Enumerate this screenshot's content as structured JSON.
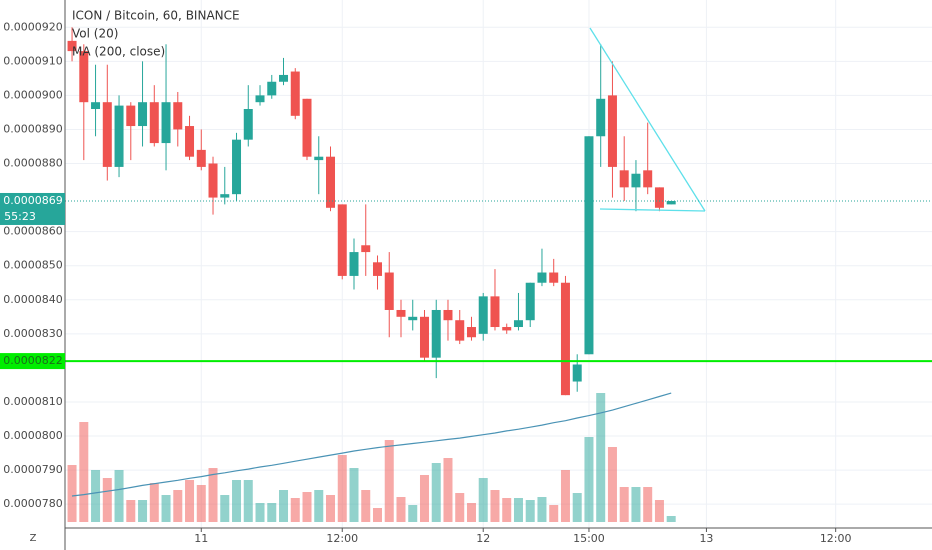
{
  "chart_data": {
    "type": "candlestick",
    "title": "ICON / Bitcoin, 60, BINANCE",
    "up_color": "#26a69a",
    "down_color": "#ef5350",
    "open": [
      9.16e-05,
      9.13e-05,
      8.96e-05,
      8.98e-05,
      8.79e-05,
      8.97e-05,
      8.91e-05,
      8.98e-05,
      8.86e-05,
      8.98e-05,
      8.91e-05,
      8.84e-05,
      8.8e-05,
      8.7e-05,
      8.71e-05,
      8.87e-05,
      8.98e-05,
      9e-05,
      9.04e-05,
      9.07e-05,
      8.99e-05,
      8.81e-05,
      8.82e-05,
      8.68e-05,
      8.47e-05,
      8.56e-05,
      8.51e-05,
      8.48e-05,
      8.37e-05,
      8.34e-05,
      8.35e-05,
      8.23e-05,
      8.37e-05,
      8.34e-05,
      8.32e-05,
      8.3e-05,
      8.41e-05,
      8.32e-05,
      8.32e-05,
      8.34e-05,
      8.45e-05,
      8.48e-05,
      8.45e-05,
      8.16e-05,
      8.24e-05,
      8.88e-05,
      9e-05,
      8.78e-05,
      8.73e-05,
      8.78e-05,
      8.73e-05,
      8.68e-05
    ],
    "high": [
      9.2e-05,
      9.15e-05,
      9.09e-05,
      9.09e-05,
      9e-05,
      8.98e-05,
      9.1e-05,
      9.03e-05,
      9.15e-05,
      9.01e-05,
      8.94e-05,
      8.9e-05,
      8.82e-05,
      8.79e-05,
      8.89e-05,
      9.03e-05,
      9.03e-05,
      9.06e-05,
      9.11e-05,
      9.08e-05,
      8.99e-05,
      8.88e-05,
      8.85e-05,
      8.68e-05,
      8.58e-05,
      8.68e-05,
      8.53e-05,
      8.54e-05,
      8.4e-05,
      8.4e-05,
      8.37e-05,
      8.4e-05,
      8.4e-05,
      8.37e-05,
      8.35e-05,
      8.42e-05,
      8.49e-05,
      8.33e-05,
      8.42e-05,
      8.45e-05,
      8.55e-05,
      8.52e-05,
      8.47e-05,
      8.24e-05,
      8.88e-05,
      9.15e-05,
      9.1e-05,
      8.88e-05,
      8.81e-05,
      8.92e-05,
      8.73e-05,
      8.69e-05
    ],
    "low": [
      9.1e-05,
      8.81e-05,
      8.88e-05,
      8.75e-05,
      8.76e-05,
      8.81e-05,
      8.85e-05,
      8.85e-05,
      8.78e-05,
      8.85e-05,
      8.81e-05,
      8.78e-05,
      8.65e-05,
      8.68e-05,
      8.69e-05,
      8.85e-05,
      8.97e-05,
      8.99e-05,
      9.03e-05,
      8.93e-05,
      8.81e-05,
      8.71e-05,
      8.66e-05,
      8.46e-05,
      8.43e-05,
      8.47e-05,
      8.43e-05,
      8.29e-05,
      8.29e-05,
      8.31e-05,
      8.22e-05,
      8.17e-05,
      8.28e-05,
      8.27e-05,
      8.28e-05,
      8.28e-05,
      8.31e-05,
      8.3e-05,
      8.31e-05,
      8.32e-05,
      8.44e-05,
      8.44e-05,
      8.12e-05,
      8.13e-05,
      8.24e-05,
      8.79e-05,
      8.7e-05,
      8.69e-05,
      8.66e-05,
      8.71e-05,
      8.66e-05,
      8.68e-05
    ],
    "close": [
      9.13e-05,
      8.98e-05,
      8.98e-05,
      8.79e-05,
      8.97e-05,
      8.91e-05,
      8.98e-05,
      8.86e-05,
      8.98e-05,
      8.9e-05,
      8.82e-05,
      8.79e-05,
      8.7e-05,
      8.71e-05,
      8.87e-05,
      8.96e-05,
      9e-05,
      9.04e-05,
      9.06e-05,
      8.94e-05,
      8.82e-05,
      8.82e-05,
      8.67e-05,
      8.47e-05,
      8.54e-05,
      8.54e-05,
      8.47e-05,
      8.37e-05,
      8.35e-05,
      8.35e-05,
      8.23e-05,
      8.37e-05,
      8.34e-05,
      8.28e-05,
      8.29e-05,
      8.41e-05,
      8.32e-05,
      8.31e-05,
      8.34e-05,
      8.45e-05,
      8.48e-05,
      8.45e-05,
      8.12e-05,
      8.21e-05,
      8.88e-05,
      8.99e-05,
      8.79e-05,
      8.73e-05,
      8.77e-05,
      8.73e-05,
      8.67e-05,
      8.69e-05
    ],
    "volume": {
      "name": "Vol (20)",
      "values": [
        57,
        100,
        52,
        44,
        52,
        22,
        22,
        39,
        27,
        32,
        42,
        37,
        54,
        27,
        42,
        42,
        19,
        19,
        32,
        24,
        30,
        32,
        27,
        67,
        54,
        32,
        14,
        82,
        25,
        17,
        47,
        59,
        64,
        29,
        19,
        44,
        32,
        24,
        24,
        22,
        25,
        17,
        52,
        29,
        85,
        129,
        75,
        35,
        35,
        35,
        22,
        6
      ]
    },
    "ma": {
      "name": "MA (200, close)",
      "color": "#4a93b5",
      "values": [
        7.824e-05,
        7.828e-05,
        7.833e-05,
        7.838e-05,
        7.843e-05,
        7.849e-05,
        7.855e-05,
        7.86e-05,
        7.865e-05,
        7.87e-05,
        7.876e-05,
        7.881e-05,
        7.887e-05,
        7.892e-05,
        7.898e-05,
        7.903e-05,
        7.909e-05,
        7.914e-05,
        7.92e-05,
        7.926e-05,
        7.932e-05,
        7.938e-05,
        7.944e-05,
        7.95e-05,
        7.956e-05,
        7.961e-05,
        7.966e-05,
        7.97e-05,
        7.974e-05,
        7.978e-05,
        7.982e-05,
        7.986e-05,
        7.99e-05,
        7.994e-05,
        7.999e-05,
        8.004e-05,
        8.009e-05,
        8.015e-05,
        8.02e-05,
        8.026e-05,
        8.032e-05,
        8.039e-05,
        8.045e-05,
        8.053e-05,
        8.06e-05,
        8.068e-05,
        8.076e-05,
        8.086e-05,
        8.096e-05,
        8.106e-05,
        8.116e-05,
        8.126e-05
      ]
    },
    "last_price": 8.69e-05,
    "countdown": "55:23",
    "price_line": {
      "value": 8.22e-05,
      "label": "0.0000822",
      "color": "#00ee00"
    },
    "ylim": [
      7.73e-05,
      9.28e-05
    ],
    "yticks": [
      {
        "value": 9.2e-05,
        "label": "0.0000920"
      },
      {
        "value": 9.1e-05,
        "label": "0.0000910"
      },
      {
        "value": 9e-05,
        "label": "0.0000900"
      },
      {
        "value": 8.9e-05,
        "label": "0.0000890"
      },
      {
        "value": 8.8e-05,
        "label": "0.0000880"
      },
      {
        "value": 8.6e-05,
        "label": "0.0000860"
      },
      {
        "value": 8.5e-05,
        "label": "0.0000850"
      },
      {
        "value": 8.4e-05,
        "label": "0.0000840"
      },
      {
        "value": 8.3e-05,
        "label": "0.0000830"
      },
      {
        "value": 8.1e-05,
        "label": "0.0000810"
      },
      {
        "value": 8e-05,
        "label": "0.0000800"
      },
      {
        "value": 7.9e-05,
        "label": "0.0000790"
      },
      {
        "value": 7.8e-05,
        "label": "0.0000780"
      }
    ],
    "xlim": [
      -0.6,
      73.2
    ],
    "xticks": [
      {
        "value": 11,
        "label": "11"
      },
      {
        "value": 23,
        "label": "12:00"
      },
      {
        "value": 35,
        "label": "12"
      },
      {
        "value": 44,
        "label": "15:00"
      },
      {
        "value": 54,
        "label": "13"
      },
      {
        "value": 65,
        "label": "12:00"
      }
    ],
    "grid": true
  },
  "toolbar": {
    "zoom": "Z"
  }
}
